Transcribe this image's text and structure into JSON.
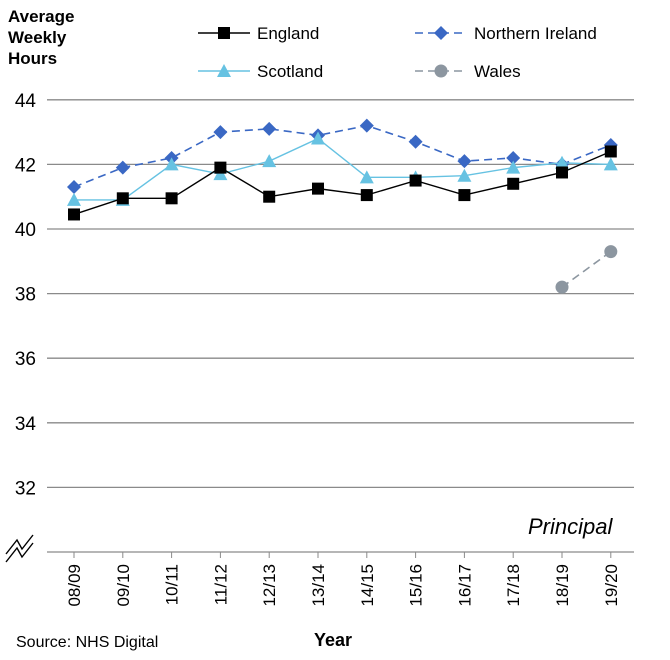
{
  "chart_data": {
    "type": "line",
    "ylabel": [
      "Average",
      "Weekly",
      "Hours"
    ],
    "xlabel": "Year",
    "annotation": "Principal",
    "source": "Source: NHS Digital",
    "categories": [
      "08/09",
      "09/10",
      "10/11",
      "11/12",
      "12/13",
      "13/14",
      "14/15",
      "15/16",
      "16/17",
      "17/18",
      "18/19",
      "19/20"
    ],
    "ylim": [
      30,
      44
    ],
    "yticks": [
      32,
      34,
      36,
      38,
      40,
      42,
      44
    ],
    "axis_break": true,
    "grid": true,
    "legend_position": "top",
    "series": [
      {
        "name": "England",
        "color": "#000000",
        "marker": "square",
        "dash": "solid",
        "values": [
          40.45,
          40.95,
          40.95,
          41.9,
          41.0,
          41.25,
          41.05,
          41.5,
          41.05,
          41.4,
          41.75,
          42.4
        ]
      },
      {
        "name": "Northern Ireland",
        "color": "#3a68c4",
        "marker": "diamond",
        "dash": "dashed",
        "values": [
          41.3,
          41.9,
          42.2,
          43.0,
          43.1,
          42.9,
          43.2,
          42.7,
          42.1,
          42.2,
          42.0,
          42.6
        ]
      },
      {
        "name": "Scotland",
        "color": "#66c2e2",
        "marker": "triangle",
        "dash": "solid",
        "values": [
          40.9,
          40.9,
          42.0,
          41.7,
          42.1,
          42.8,
          41.6,
          41.6,
          41.65,
          41.9,
          42.05,
          42.0
        ]
      },
      {
        "name": "Wales",
        "color": "#8c96a0",
        "marker": "circle",
        "dash": "dashed",
        "values": [
          null,
          null,
          null,
          null,
          null,
          null,
          null,
          null,
          null,
          null,
          38.2,
          39.3
        ]
      }
    ]
  }
}
